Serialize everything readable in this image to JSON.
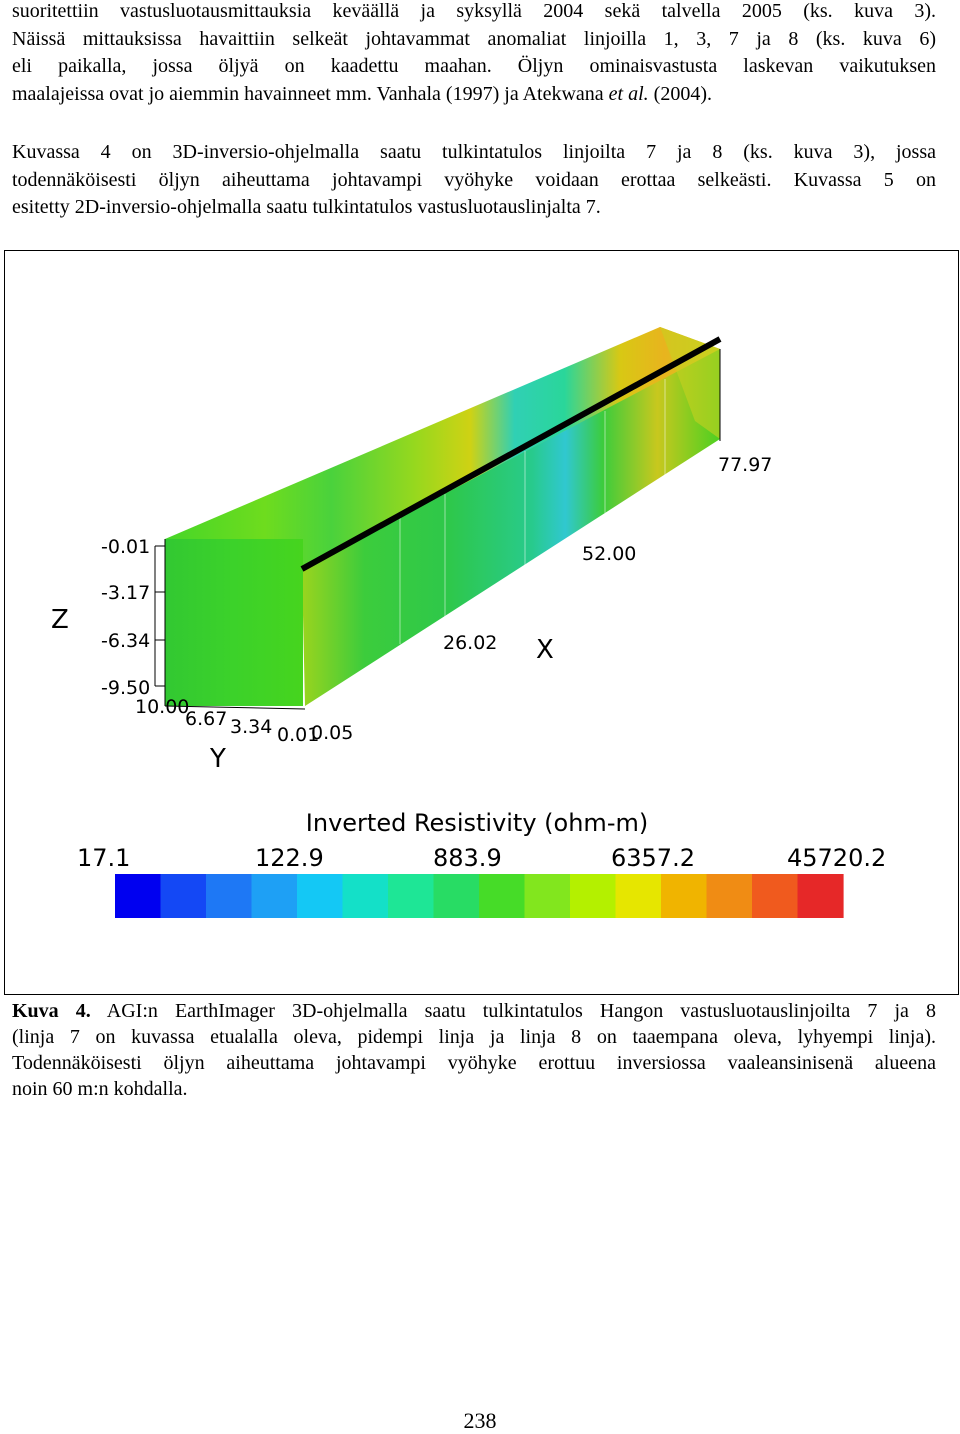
{
  "paragraph1": {
    "lines": [
      "suoritettiin vastusluotausmittauksia keväällä ja syksyllä 2004 sekä talvella 2005 (ks. kuva 3).",
      "Näissä mittauksissa havaittiin selkeät johtavammat anomaliat linjoilla 1, 3, 7 ja 8 (ks. kuva 6)",
      "eli paikalla, jossa öljyä on kaadettu maahan. Öljyn ominaisvastusta laskevan vaikutuksen",
      "maalajeissa ovat jo aiemmin havainneet mm. Vanhala (1997) ja Atekwana "
    ],
    "etal": "et al.",
    "after_etal": " (2004)."
  },
  "paragraph2": {
    "lines": [
      "Kuvassa 4 on 3D-inversio-ohjelmalla saatu tulkintatulos linjoilta 7 ja 8 (ks. kuva 3), jossa",
      "todennäköisesti öljyn aiheuttama johtavampi vyöhyke voidaan erottaa selkeästi. Kuvassa 5 on",
      "esitetty 2D-inversio-ohjelmalla saatu tulkintatulos vastusluotauslinjalta 7."
    ]
  },
  "figure": {
    "axes": {
      "z_label": "Z",
      "x_label": "X",
      "y_label": "Y",
      "z_ticks": [
        "-0.01",
        "-3.17",
        "-6.34",
        "-9.50"
      ],
      "y_ticks": [
        "10.00",
        "6.67",
        "3.34",
        "0.01"
      ],
      "x_ticks": [
        "0.05",
        "26.02",
        "52.00",
        "77.97"
      ]
    },
    "colorbar": {
      "title": "Inverted Resistivity (ohm-m)",
      "labels": [
        "17.1",
        "122.9",
        "883.9",
        "6357.2",
        "45720.2"
      ],
      "colors": [
        "#0000f0",
        "#1448f5",
        "#1e78f5",
        "#1ea0f5",
        "#14c8f5",
        "#14e0c8",
        "#1ee696",
        "#28dc64",
        "#46dc28",
        "#82e61e",
        "#b4f000",
        "#e6e600",
        "#f0b400",
        "#f08c14",
        "#f05a1e",
        "#e62828"
      ]
    },
    "description": "",
    "box_colors": {
      "front": "#3ad02a",
      "top": "#5ad81e",
      "side": "#2fcf38",
      "anomaly": "#28d2a0",
      "warm": "#e6c81e",
      "line": "#000000"
    }
  },
  "caption": {
    "label": "Kuva 4.",
    "lines": [
      " AGI:n EarthImager 3D-ohjelmalla saatu tulkintatulos Hangon vastusluotauslinjoilta 7 ja 8",
      "(linja 7 on kuvassa etualalla oleva, pidempi linja ja linja 8 on taaempana oleva, lyhyempi linja).",
      "Todennäköisesti öljyn aiheuttama johtavampi vyöhyke erottuu inversiossa vaaleansinisenä alueena",
      "noin 60 m:n kohdalla."
    ]
  },
  "page_number": "238"
}
